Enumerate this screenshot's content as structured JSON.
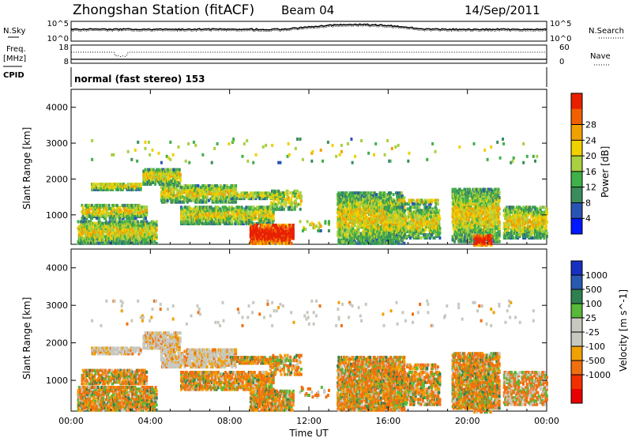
{
  "header": {
    "title": "Zhongshan Station (fitACF)",
    "beam": "Beam 04",
    "date": "14/Sep/2011"
  },
  "noise_panel": {
    "left_label": "N.Sky",
    "right_label": "N.Search",
    "ticks_left": [
      "10^5",
      "10^0"
    ],
    "ticks_right": [
      "10^5",
      "10^0"
    ]
  },
  "freq_panel": {
    "left_label_line1": "Freq.",
    "left_label_line2": "[MHz]",
    "right_label": "Nave",
    "ticks_left": [
      "18",
      "8"
    ],
    "ticks_right": [
      "60",
      "0"
    ]
  },
  "cpid": {
    "label": "CPID",
    "text": "normal (fast stereo) 153"
  },
  "colors": {
    "power": [
      "#0018ff",
      "#2a54b4",
      "#3a8c5c",
      "#40b048",
      "#a8d040",
      "#f0d000",
      "#f0a000",
      "#f06000",
      "#e82000"
    ],
    "velocity": [
      "#e80000",
      "#f03000",
      "#f07010",
      "#f0a000",
      "#c8c8c0",
      "#c8c8c0",
      "#58b838",
      "#2e8050",
      "#2a5ab0",
      "#1830c0"
    ]
  },
  "chart_data": [
    {
      "type": "heatmap",
      "name": "power",
      "ylabel": "Slant Range [km]",
      "yticks": [
        "1000",
        "2000",
        "3000",
        "4000"
      ],
      "ylim": [
        180,
        4500
      ],
      "xticks": [
        "00:00",
        "04:00",
        "08:00",
        "12:00",
        "16:00",
        "20:00",
        "00:00"
      ],
      "xlim_hours": [
        0,
        24
      ],
      "colorbar": {
        "label": "Power [dB]",
        "ticks": [
          "4",
          "8",
          "12",
          "16",
          "20",
          "24",
          "28"
        ]
      }
    },
    {
      "type": "heatmap",
      "name": "velocity",
      "ylabel": "Slant Range [km]",
      "yticks": [
        "1000",
        "2000",
        "3000",
        "4000"
      ],
      "ylim": [
        180,
        4500
      ],
      "xticks": [
        "00:00",
        "04:00",
        "08:00",
        "12:00",
        "16:00",
        "20:00",
        "00:00"
      ],
      "xlim_hours": [
        0,
        24
      ],
      "xlabel": "Time UT",
      "colorbar": {
        "label": "Velocity [m s^-1]",
        "ticks": [
          "1000",
          "500",
          "100",
          "25",
          "-25",
          "-100",
          "-500",
          "-1000"
        ]
      }
    }
  ]
}
